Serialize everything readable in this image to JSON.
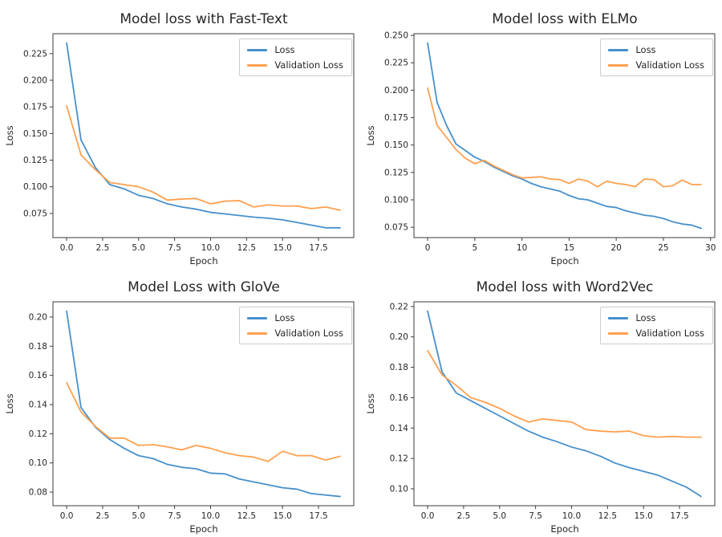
{
  "colors": {
    "title": "#f40000",
    "loss_line": "#4690cc",
    "validation_loss_line": "#ffa04f",
    "axis": "#3b3b3b",
    "tick_label": "#262626"
  },
  "chart_data": [
    {
      "type": "line",
      "title": "Model loss with Fast-Text",
      "xlabel": "Epoch",
      "ylabel": "Loss",
      "legend_position": "upper right",
      "grid": false,
      "x": [
        0,
        1,
        2,
        3,
        4,
        5,
        6,
        7,
        8,
        9,
        10,
        11,
        12,
        13,
        14,
        15,
        16,
        17,
        18,
        19
      ],
      "xlim": [
        -0.95,
        19.95
      ],
      "ylim": [
        0.0523,
        0.2437
      ],
      "xticks": [
        0,
        2.5,
        5,
        7.5,
        10,
        12.5,
        15,
        17.5
      ],
      "xtick_labels": [
        "0.0",
        "2.5",
        "5.0",
        "7.5",
        "10.0",
        "12.5",
        "15.0",
        "17.5"
      ],
      "yticks": [
        0.075,
        0.1,
        0.125,
        0.15,
        0.175,
        0.2,
        0.225
      ],
      "ytick_labels": [
        "0.075",
        "0.100",
        "0.125",
        "0.150",
        "0.175",
        "0.200",
        "0.225"
      ],
      "series": [
        {
          "name": "Loss",
          "color": "#4690cc",
          "values": [
            0.235,
            0.144,
            0.118,
            0.102,
            0.098,
            0.092,
            0.089,
            0.084,
            0.081,
            0.079,
            0.076,
            0.0745,
            0.073,
            0.0715,
            0.0705,
            0.069,
            0.0665,
            0.064,
            0.0615,
            0.0615
          ]
        },
        {
          "name": "Validation Loss",
          "color": "#ffa04f",
          "values": [
            0.176,
            0.13,
            0.116,
            0.104,
            0.102,
            0.1,
            0.095,
            0.0875,
            0.0885,
            0.089,
            0.084,
            0.0865,
            0.087,
            0.081,
            0.083,
            0.082,
            0.082,
            0.0795,
            0.081,
            0.078
          ]
        }
      ]
    },
    {
      "type": "line",
      "title": "Model loss with ELMo",
      "xlabel": "Epoch",
      "ylabel": "Loss",
      "legend_position": "upper right",
      "grid": false,
      "x": [
        0,
        1,
        2,
        3,
        4,
        5,
        6,
        7,
        8,
        9,
        10,
        11,
        12,
        13,
        14,
        15,
        16,
        17,
        18,
        19,
        20,
        21,
        22,
        23,
        24,
        25,
        26,
        27,
        28,
        29
      ],
      "xlim": [
        -1.45,
        30.45
      ],
      "ylim": [
        0.0656,
        0.2515
      ],
      "xticks": [
        0,
        5,
        10,
        15,
        20,
        25,
        30
      ],
      "xtick_labels": [
        "0",
        "5",
        "10",
        "15",
        "20",
        "25",
        "30"
      ],
      "yticks": [
        0.075,
        0.1,
        0.125,
        0.15,
        0.175,
        0.2,
        0.225,
        0.25
      ],
      "ytick_labels": [
        "0.075",
        "0.100",
        "0.125",
        "0.150",
        "0.175",
        "0.200",
        "0.225",
        "0.250"
      ],
      "series": [
        {
          "name": "Loss",
          "color": "#4690cc",
          "values": [
            0.243,
            0.189,
            0.168,
            0.151,
            0.145,
            0.139,
            0.135,
            0.13,
            0.126,
            0.122,
            0.119,
            0.115,
            0.112,
            0.11,
            0.108,
            0.104,
            0.101,
            0.1,
            0.097,
            0.094,
            0.093,
            0.09,
            0.088,
            0.086,
            0.085,
            0.083,
            0.08,
            0.078,
            0.077,
            0.074
          ]
        },
        {
          "name": "Validation Loss",
          "color": "#ffa04f",
          "values": [
            0.202,
            0.168,
            0.157,
            0.146,
            0.138,
            0.133,
            0.136,
            0.131,
            0.127,
            0.123,
            0.12,
            0.1205,
            0.121,
            0.119,
            0.1185,
            0.115,
            0.119,
            0.117,
            0.112,
            0.117,
            0.115,
            0.114,
            0.112,
            0.119,
            0.1185,
            0.112,
            0.113,
            0.118,
            0.114,
            0.114
          ]
        }
      ]
    },
    {
      "type": "line",
      "title": "Model Loss with GloVe",
      "xlabel": "Epoch",
      "ylabel": "Loss",
      "legend_position": "upper right",
      "grid": false,
      "x": [
        0,
        1,
        2,
        3,
        4,
        5,
        6,
        7,
        8,
        9,
        10,
        11,
        12,
        13,
        14,
        15,
        16,
        17,
        18,
        19
      ],
      "xlim": [
        -0.95,
        19.95
      ],
      "ylim": [
        0.0707,
        0.2104
      ],
      "xticks": [
        0,
        2.5,
        5,
        7.5,
        10,
        12.5,
        15,
        17.5
      ],
      "xtick_labels": [
        "0.0",
        "2.5",
        "5.0",
        "7.5",
        "10.0",
        "12.5",
        "15.0",
        "17.5"
      ],
      "yticks": [
        0.08,
        0.1,
        0.12,
        0.14,
        0.16,
        0.18,
        0.2
      ],
      "ytick_labels": [
        "0.08",
        "0.10",
        "0.12",
        "0.14",
        "0.16",
        "0.18",
        "0.20"
      ],
      "series": [
        {
          "name": "Loss",
          "color": "#4690cc",
          "values": [
            0.204,
            0.138,
            0.1245,
            0.116,
            0.11,
            0.105,
            0.103,
            0.099,
            0.097,
            0.096,
            0.093,
            0.0925,
            0.089,
            0.087,
            0.085,
            0.083,
            0.082,
            0.079,
            0.078,
            0.077
          ]
        },
        {
          "name": "Validation Loss",
          "color": "#ffa04f",
          "values": [
            0.155,
            0.135,
            0.125,
            0.117,
            0.117,
            0.112,
            0.1125,
            0.111,
            0.109,
            0.112,
            0.11,
            0.107,
            0.105,
            0.104,
            0.101,
            0.108,
            0.105,
            0.105,
            0.102,
            0.1045
          ]
        }
      ]
    },
    {
      "type": "line",
      "title": "Model loss with Word2Vec",
      "xlabel": "Epoch",
      "ylabel": "Loss",
      "legend_position": "upper right",
      "grid": false,
      "x": [
        0,
        1,
        2,
        3,
        4,
        5,
        6,
        7,
        8,
        9,
        10,
        11,
        12,
        13,
        14,
        15,
        16,
        17,
        18,
        19
      ],
      "xlim": [
        -0.95,
        19.95
      ],
      "ylim": [
        0.0889,
        0.2231
      ],
      "xticks": [
        0,
        2.5,
        5,
        7.5,
        10,
        12.5,
        15,
        17.5
      ],
      "xtick_labels": [
        "0.0",
        "2.5",
        "5.0",
        "7.5",
        "10.0",
        "12.5",
        "15.0",
        "17.5"
      ],
      "yticks": [
        0.1,
        0.12,
        0.14,
        0.16,
        0.18,
        0.2,
        0.22
      ],
      "ytick_labels": [
        "0.10",
        "0.12",
        "0.14",
        "0.16",
        "0.18",
        "0.20",
        "0.22"
      ],
      "series": [
        {
          "name": "Loss",
          "color": "#4690cc",
          "values": [
            0.217,
            0.177,
            0.163,
            0.158,
            0.153,
            0.148,
            0.143,
            0.138,
            0.134,
            0.131,
            0.1275,
            0.125,
            0.1215,
            0.117,
            0.114,
            0.1115,
            0.109,
            0.105,
            0.101,
            0.095
          ]
        },
        {
          "name": "Validation Loss",
          "color": "#ffa04f",
          "values": [
            0.191,
            0.175,
            0.168,
            0.16,
            0.157,
            0.153,
            0.148,
            0.144,
            0.146,
            0.145,
            0.144,
            0.139,
            0.138,
            0.1375,
            0.138,
            0.135,
            0.134,
            0.1345,
            0.134,
            0.134
          ]
        }
      ]
    }
  ]
}
